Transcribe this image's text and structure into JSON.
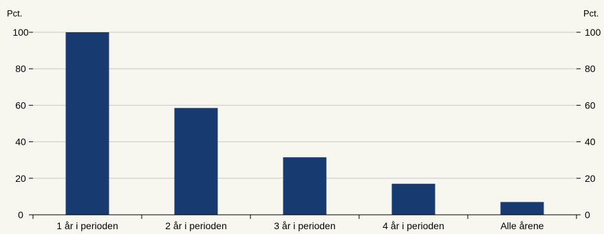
{
  "chart_data": {
    "type": "bar",
    "categories": [
      "1 år i perioden",
      "2 år i perioden",
      "3 år i perioden",
      "4 år i perioden",
      "Alle årene"
    ],
    "values": [
      100,
      58.5,
      31.5,
      17,
      7
    ],
    "y_unit_left": "Pct.",
    "y_unit_right": "Pct.",
    "ylim": [
      0,
      100
    ],
    "yticks": [
      0,
      20,
      40,
      60,
      80,
      100
    ],
    "grid": true,
    "bar_color": "#173a70",
    "grid_color": "#c8c8c8",
    "background": "#f7f6ef"
  }
}
